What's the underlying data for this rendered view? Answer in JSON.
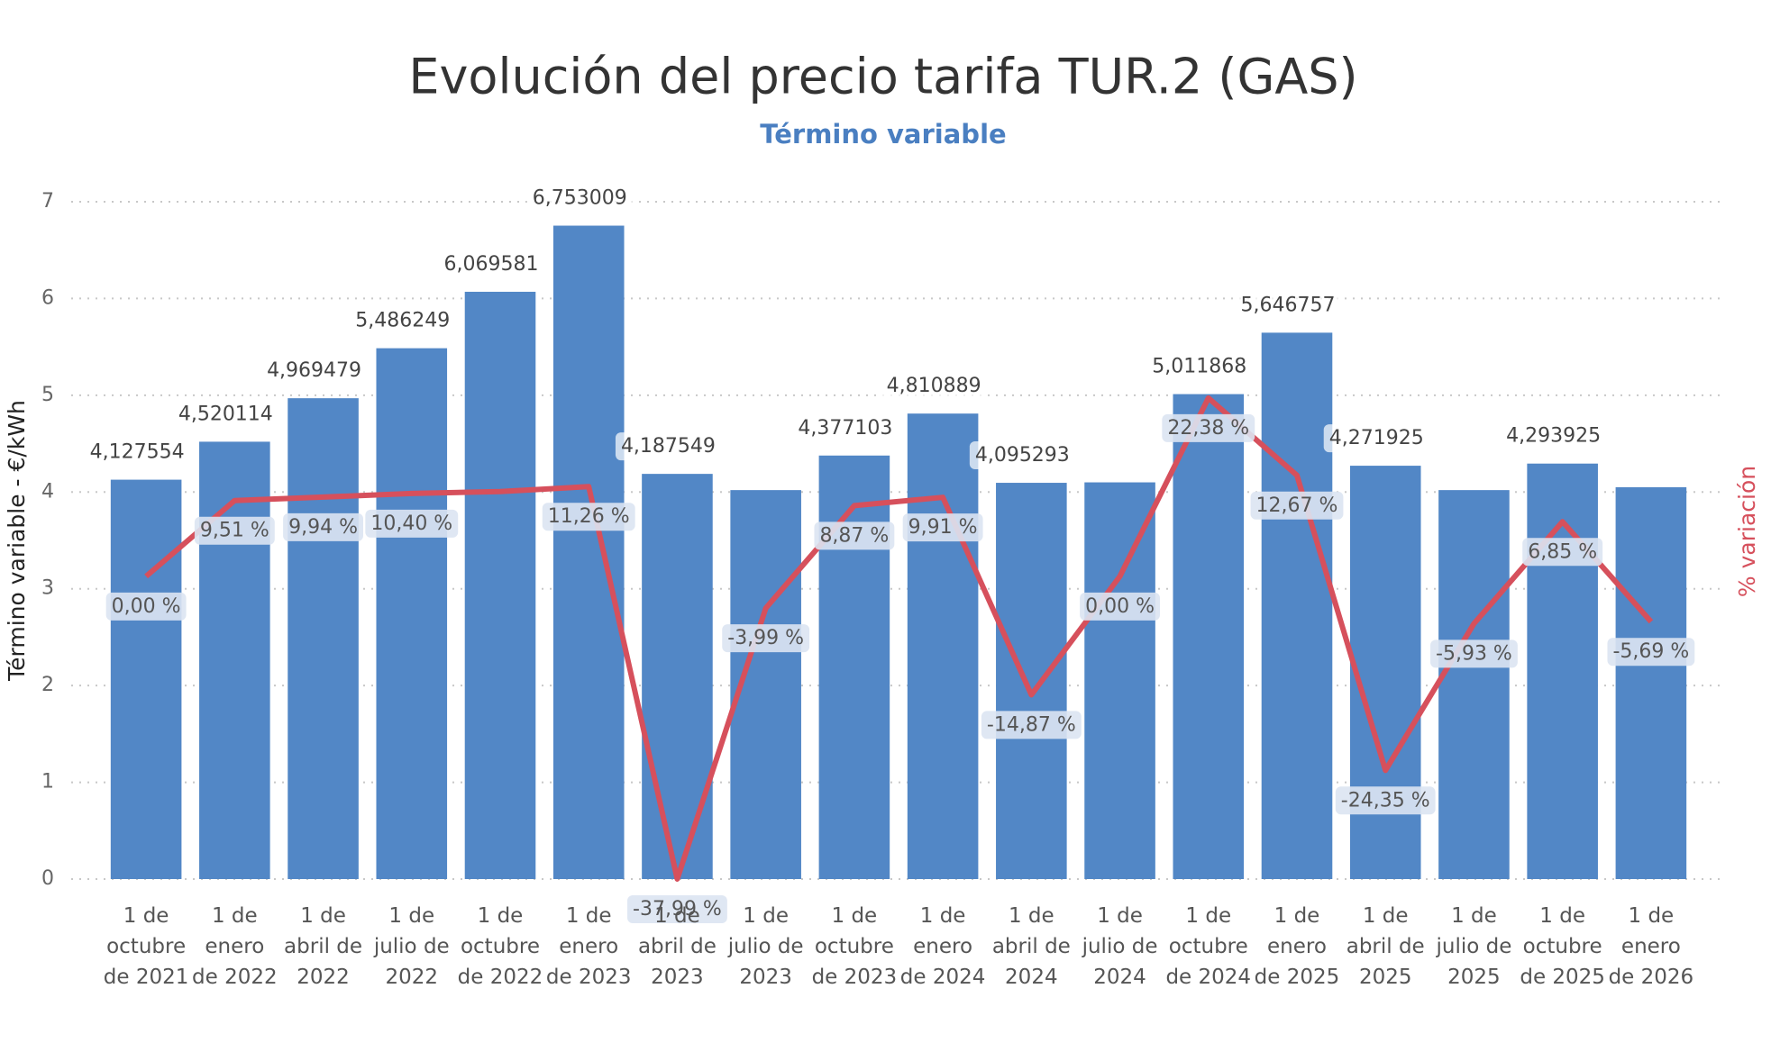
{
  "chart_data": {
    "type": "bar-line",
    "title": "Evolución del precio tarifa TUR.2 (GAS)",
    "subtitle": "Término variable",
    "y_label": "Término variable - €/kWh",
    "y2_label": "% variación",
    "categories": [
      "1 de octubre de 2021",
      "1 de enero de 2022",
      "1 de abril de 2022",
      "1 de julio de 2022",
      "1 de octubre de 2022",
      "1 de enero de 2023",
      "1 de abril de 2023",
      "1 de julio de 2023",
      "1 de octubre de 2023",
      "1 de enero de 2024",
      "1 de abril de 2024",
      "1 de julio de 2024",
      "1 de octubre de 2024",
      "1 de enero de 2025",
      "1 de abril de 2025",
      "1 de julio de 2025",
      "1 de octubre de 2025",
      "1 de enero de 2026"
    ],
    "series": [
      {
        "type": "bar",
        "color": "#5287c6",
        "values": [
          4.127554,
          4.520114,
          4.969479,
          5.486249,
          6.069581,
          6.753009,
          4.187549,
          4.02,
          4.377103,
          4.810889,
          4.095293,
          4.1,
          5.011868,
          5.646757,
          4.271925,
          4.02,
          4.293925,
          4.05
        ],
        "value_labels": [
          "4,127554",
          "4,520114",
          "4,969479",
          "5,486249",
          "6,069581",
          "6,753009",
          "4,187549",
          null,
          "4,377103",
          "4,810889",
          "4,095293",
          null,
          "5,011868",
          "5,646757",
          "4,271925",
          null,
          "4,293925",
          null
        ]
      },
      {
        "type": "line",
        "color": "#d6505c",
        "axis": "y2",
        "values": [
          0,
          9.51,
          9.94,
          10.4,
          10.63,
          11.26,
          -37.99,
          -3.99,
          8.87,
          9.91,
          -14.87,
          0,
          22.38,
          12.67,
          -24.35,
          -5.93,
          6.85,
          -5.69
        ],
        "value_labels": [
          "0,00 %",
          "9,51 %",
          "9,94 %",
          "10,40 %",
          null,
          "11,26 %",
          "-37,99 %",
          "-3,99 %",
          "8,87 %",
          "9,91 %",
          "-14,87 %",
          "0,00 %",
          "22,38 %",
          "12,67 %",
          "-24,35 %",
          "-5,93 %",
          "6,85 %",
          "-5,69 %"
        ]
      }
    ],
    "ylim": [
      0,
      7
    ],
    "yticks": [
      0,
      1,
      2,
      3,
      4,
      5,
      6,
      7
    ],
    "y2lim": [
      -37.99,
      47
    ],
    "grid": true
  }
}
